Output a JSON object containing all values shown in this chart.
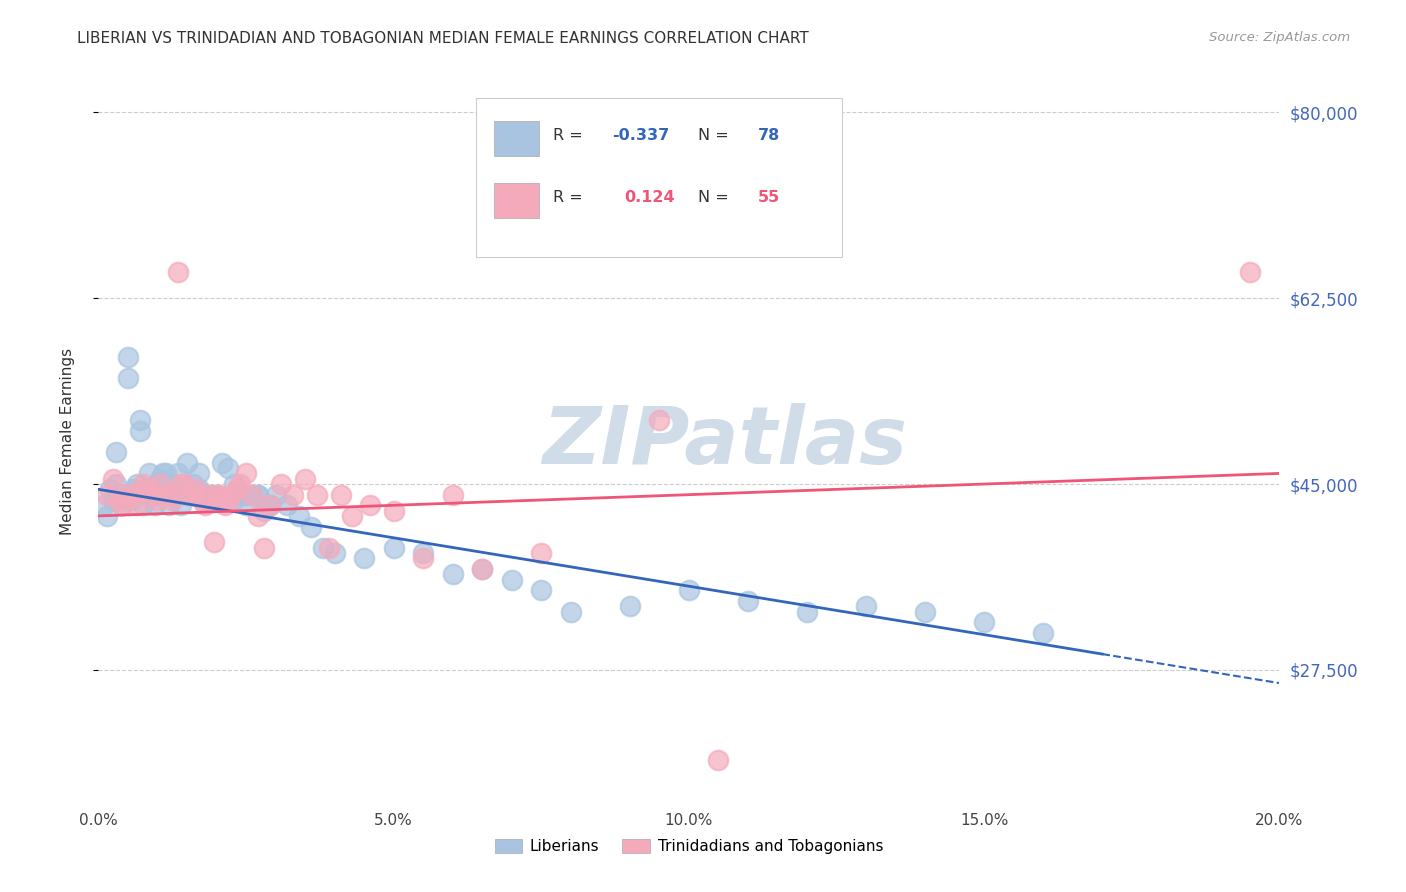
{
  "title": "LIBERIAN VS TRINIDADIAN AND TOBAGONIAN MEDIAN FEMALE EARNINGS CORRELATION CHART",
  "source": "Source: ZipAtlas.com",
  "ylabel": "Median Female Earnings",
  "y_ticks": [
    27500,
    45000,
    62500,
    80000
  ],
  "y_tick_labels": [
    "$27,500",
    "$45,000",
    "$62,500",
    "$80,000"
  ],
  "x_min": 0.0,
  "x_max": 20.0,
  "y_min": 15000,
  "y_max": 83000,
  "liberian_R": -0.337,
  "liberian_N": 78,
  "trinidadian_R": 0.124,
  "trinidadian_N": 55,
  "blue_color": "#A8C4E0",
  "pink_color": "#F4AABB",
  "blue_line_color": "#3366BB",
  "pink_line_color": "#EE5577",
  "watermark": "ZIPatlas",
  "watermark_color": "#D0DCE8",
  "legend_label_blue": "Liberians",
  "legend_label_pink": "Trinidadians and Tobagonians",
  "blue_R_color": "#3366BB",
  "pink_R_color": "#EE5577",
  "liberian_dots_x": [
    0.1,
    0.15,
    0.2,
    0.25,
    0.3,
    0.35,
    0.4,
    0.45,
    0.5,
    0.55,
    0.6,
    0.65,
    0.7,
    0.75,
    0.8,
    0.85,
    0.9,
    0.95,
    1.0,
    1.05,
    1.1,
    1.15,
    1.2,
    1.25,
    1.3,
    1.35,
    1.4,
    1.5,
    1.6,
    1.7,
    1.8,
    1.9,
    2.0,
    2.1,
    2.2,
    2.3,
    2.4,
    2.5,
    2.6,
    2.7,
    2.8,
    2.9,
    3.0,
    3.2,
    3.4,
    3.6,
    3.8,
    4.0,
    4.5,
    5.0,
    5.5,
    6.0,
    6.5,
    7.0,
    7.5,
    8.0,
    9.0,
    10.0,
    11.0,
    12.0,
    13.0,
    14.0,
    15.0,
    16.0,
    0.3,
    0.5,
    0.7,
    0.9,
    1.1,
    1.3,
    1.5,
    1.7,
    1.9,
    2.1,
    2.3,
    2.5,
    2.7,
    2.9
  ],
  "liberian_dots_y": [
    43000,
    42000,
    44500,
    43500,
    45000,
    44000,
    43000,
    44000,
    55000,
    43500,
    44500,
    45000,
    51000,
    43000,
    44000,
    46000,
    44000,
    43000,
    45000,
    45500,
    44000,
    46000,
    43000,
    45000,
    44000,
    46000,
    43000,
    47000,
    45000,
    44500,
    44000,
    43500,
    44000,
    47000,
    46500,
    45000,
    44000,
    43000,
    44000,
    44000,
    42500,
    43000,
    44000,
    43000,
    42000,
    41000,
    39000,
    38500,
    38000,
    39000,
    38500,
    36500,
    37000,
    36000,
    35000,
    33000,
    33500,
    35000,
    34000,
    33000,
    33500,
    33000,
    32000,
    31000,
    48000,
    57000,
    50000,
    44000,
    46000,
    44000,
    44000,
    46000,
    44000,
    43500,
    43500,
    44000,
    44000,
    43000
  ],
  "trinidadian_dots_x": [
    0.15,
    0.25,
    0.35,
    0.45,
    0.55,
    0.65,
    0.75,
    0.85,
    0.95,
    1.05,
    1.15,
    1.25,
    1.35,
    1.45,
    1.55,
    1.65,
    1.75,
    1.85,
    1.95,
    2.05,
    2.15,
    2.25,
    2.35,
    2.5,
    2.7,
    2.9,
    3.1,
    3.3,
    3.5,
    3.7,
    3.9,
    4.1,
    4.3,
    4.6,
    5.0,
    5.5,
    6.0,
    6.5,
    7.5,
    9.5,
    10.5,
    19.5,
    0.4,
    0.6,
    0.8,
    1.0,
    1.2,
    1.4,
    1.6,
    1.8,
    2.0,
    2.2,
    2.4,
    2.6,
    2.8
  ],
  "trinidadian_dots_y": [
    44000,
    45500,
    43500,
    44000,
    44000,
    43000,
    45000,
    44500,
    44000,
    45000,
    44000,
    43500,
    65000,
    45000,
    44000,
    44500,
    43500,
    44000,
    39500,
    44000,
    43000,
    44000,
    44500,
    46000,
    42000,
    43000,
    45000,
    44000,
    45500,
    44000,
    39000,
    44000,
    42000,
    43000,
    42500,
    38000,
    44000,
    37000,
    38500,
    51000,
    19000,
    65000,
    43000,
    44000,
    44500,
    43500,
    44000,
    45000,
    44000,
    43000,
    44000,
    43500,
    45000,
    44000,
    39000
  ],
  "blue_trend_x0": 0.0,
  "blue_trend_y0": 44500,
  "blue_trend_x1": 17.0,
  "blue_trend_y1": 29000,
  "blue_dash_x0": 17.0,
  "blue_dash_x1": 20.0,
  "pink_trend_x0": 0.0,
  "pink_trend_y0": 42000,
  "pink_trend_x1": 20.0,
  "pink_trend_y1": 46000
}
